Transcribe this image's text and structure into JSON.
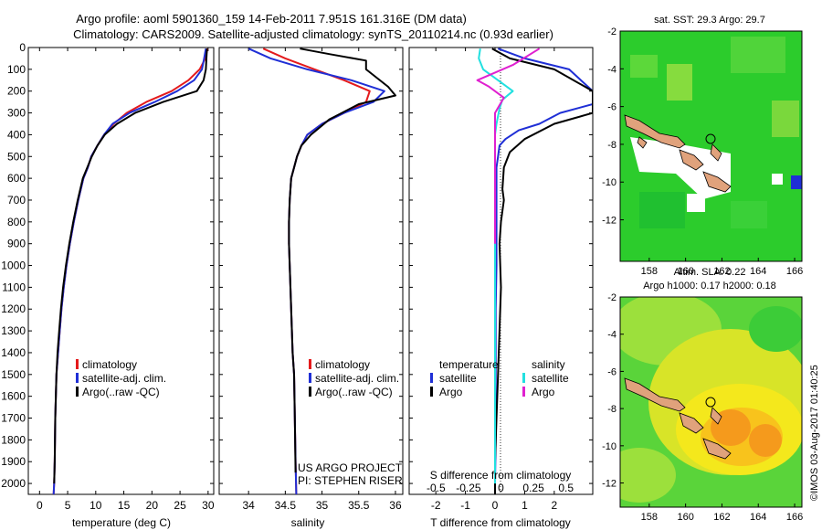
{
  "header": {
    "line1": "Argo profile: aoml 5901360_159 14-Feb-2011 7.951S 161.316E (DM data)",
    "line2": "Climatology: CARS2009. Satellite-adjusted climatology: synTS_20110214.nc (0.93d earlier)"
  },
  "sst_map": {
    "title": "sat. SST: 29.3 Argo: 29.7"
  },
  "sla_map": {
    "title1": "Altim. SLA: 0.22",
    "title2": "Argo h1000: 0.17 h2000: 0.18"
  },
  "credits": {
    "project": "US ARGO PROJECT",
    "pi": "PI: STEPHEN RISER",
    "stamp": "©IMOS 03-Aug-2017 01:40:25"
  },
  "colors": {
    "climatology": "#e41a1c",
    "satellite": "#1f2fd6",
    "argo": "#000000",
    "sal_satellite": "#22e0e0",
    "sal_argo": "#e020d0",
    "map_green": "#2ccc2c",
    "map_yellow": "#f4e81c",
    "map_orange": "#f59a1c",
    "land": "#e0a27c"
  },
  "legend_profiles": [
    "climatology",
    "satellite-adj. clim.",
    "Argo(..raw -QC)"
  ],
  "legend_diff": {
    "temp_head": "temperature",
    "sal_head": "salinity",
    "sat": "satellite",
    "argo": "Argo"
  },
  "chart_data": [
    {
      "type": "line",
      "ylabel": "",
      "xlabel": "temperature (deg C)",
      "xlim": [
        -2,
        31
      ],
      "ylim": [
        2050,
        0
      ],
      "xticks": [
        0,
        5,
        10,
        15,
        20,
        25,
        30
      ],
      "yticks": [
        0,
        100,
        200,
        300,
        400,
        500,
        600,
        700,
        800,
        900,
        1000,
        1100,
        1200,
        1300,
        1400,
        1500,
        1600,
        1700,
        1800,
        1900,
        2000
      ],
      "series": [
        {
          "name": "climatology",
          "color_key": "climatology",
          "x": [
            29.9,
            29.5,
            28.5,
            26.5,
            23.5,
            19,
            15.5,
            13.2,
            11.5,
            10.3,
            9.2,
            8.6,
            7.8,
            6.9,
            6.1,
            5.4,
            4.8,
            4.3,
            3.9,
            3.6,
            3.3,
            3.0,
            2.8,
            2.7,
            2.6,
            2.5
          ],
          "y": [
            5,
            50,
            100,
            150,
            200,
            250,
            300,
            350,
            400,
            450,
            500,
            550,
            600,
            700,
            800,
            900,
            1000,
            1100,
            1200,
            1300,
            1400,
            1500,
            1700,
            1900,
            2000,
            2050
          ]
        },
        {
          "name": "satellite-adj. clim.",
          "color_key": "satellite",
          "x": [
            29.6,
            29.3,
            28.9,
            27.5,
            24.5,
            20.5,
            16,
            13,
            11.5,
            10.3,
            9.2,
            8.6,
            7.8,
            6.9,
            6.1,
            5.4,
            4.8,
            4.3,
            3.9,
            3.6,
            3.3,
            3.0,
            2.8,
            2.7,
            2.6,
            2.5
          ],
          "y": [
            5,
            50,
            100,
            150,
            200,
            250,
            300,
            350,
            400,
            450,
            500,
            550,
            600,
            700,
            800,
            900,
            1000,
            1100,
            1200,
            1300,
            1400,
            1500,
            1700,
            1900,
            2000,
            2050
          ]
        },
        {
          "name": "Argo(..raw -QC)",
          "color_key": "argo",
          "x": [
            29.8,
            29.7,
            29.6,
            29.2,
            28,
            22,
            17,
            13.8,
            11.6,
            10.3,
            9.3,
            8.5,
            7.7,
            6.8,
            6.0,
            5.3,
            4.7,
            4.2,
            3.8,
            3.5,
            3.2,
            3.0,
            2.8,
            2.7,
            2.6
          ],
          "y": [
            5,
            50,
            100,
            150,
            200,
            250,
            300,
            350,
            400,
            450,
            500,
            550,
            600,
            700,
            800,
            900,
            1000,
            1100,
            1200,
            1300,
            1400,
            1500,
            1700,
            1900,
            2000
          ]
        }
      ]
    },
    {
      "type": "line",
      "xlabel": "salinity",
      "xlim": [
        33.6,
        36.1
      ],
      "ylim": [
        2050,
        0
      ],
      "xticks": [
        34,
        34.5,
        35,
        35.5,
        36
      ],
      "series": [
        {
          "name": "climatology",
          "color_key": "climatology",
          "x": [
            34.2,
            34.5,
            34.9,
            35.3,
            35.65,
            35.6,
            35.3,
            35.0,
            34.8,
            34.72,
            34.66,
            34.62,
            34.58,
            34.56,
            34.55,
            34.55,
            34.56,
            34.57,
            34.58,
            34.59,
            34.6,
            34.62,
            34.63,
            34.64,
            34.65
          ],
          "y": [
            5,
            50,
            100,
            150,
            200,
            250,
            300,
            350,
            400,
            450,
            500,
            550,
            600,
            700,
            800,
            900,
            1000,
            1100,
            1200,
            1300,
            1400,
            1500,
            1700,
            1900,
            2050
          ]
        },
        {
          "name": "satellite-adj. clim.",
          "color_key": "satellite",
          "x": [
            34.0,
            34.3,
            34.8,
            35.4,
            35.85,
            35.7,
            35.3,
            35.0,
            34.8,
            34.72,
            34.66,
            34.62,
            34.58,
            34.56,
            34.55,
            34.55,
            34.56,
            34.57,
            34.58,
            34.59,
            34.6,
            34.62,
            34.63,
            34.64,
            34.65
          ],
          "y": [
            5,
            50,
            100,
            150,
            200,
            250,
            300,
            350,
            400,
            450,
            500,
            550,
            600,
            700,
            800,
            900,
            1000,
            1100,
            1200,
            1300,
            1400,
            1500,
            1700,
            1900,
            2050
          ]
        },
        {
          "name": "Argo(..raw -QC)",
          "color_key": "argo",
          "x": [
            34.7,
            35.1,
            35.6,
            35.6,
            35.9,
            36.0,
            35.5,
            35.1,
            34.85,
            34.72,
            34.66,
            34.62,
            34.58,
            34.56,
            34.55,
            34.55,
            34.56,
            34.57,
            34.58,
            34.59,
            34.6,
            34.62,
            34.63,
            34.64
          ],
          "y": [
            5,
            30,
            60,
            100,
            180,
            220,
            260,
            330,
            400,
            450,
            500,
            550,
            600,
            700,
            800,
            900,
            1000,
            1100,
            1200,
            1300,
            1400,
            1500,
            1700,
            1950
          ]
        }
      ]
    },
    {
      "type": "line",
      "xlabel": "T difference from climatology",
      "xlabel_top": "S difference from climatology",
      "xlim": [
        -2.9,
        3.3
      ],
      "ylim": [
        2050,
        0
      ],
      "xticks": [
        -2,
        -1,
        0,
        1,
        2
      ],
      "xticks_top": [
        -0.5,
        -0.25,
        0,
        0.25,
        0.5
      ],
      "series": [
        {
          "name": "temperature satellite",
          "color_key": "satellite",
          "x": [
            0.1,
            1.0,
            2.5,
            3.3,
            3.3,
            2.2,
            1.5,
            0.8,
            0.35,
            0.15,
            0.1,
            0.05,
            0.05,
            0.05,
            0.05,
            0.02,
            0.02,
            0.02,
            0.02,
            0.0,
            0.0
          ],
          "y": [
            5,
            50,
            100,
            200,
            260,
            300,
            350,
            380,
            420,
            450,
            500,
            550,
            650,
            800,
            1000,
            1200,
            1400,
            1600,
            1800,
            2000,
            2050
          ]
        },
        {
          "name": "temperature Argo",
          "color_key": "argo",
          "x": [
            -0.1,
            0.5,
            2.0,
            3.3,
            3.3,
            2.0,
            1.0,
            0.5,
            0.3,
            0.25,
            0.3,
            0.2,
            0.15,
            0.2,
            0.15,
            0.1,
            0.05,
            0.0,
            0.0
          ],
          "y": [
            5,
            50,
            100,
            200,
            300,
            350,
            420,
            480,
            550,
            650,
            700,
            800,
            900,
            1100,
            1300,
            1500,
            1700,
            1900,
            2050
          ]
        },
        {
          "name": "salinity satellite",
          "color_key": "sal_satellite",
          "x": [
            -0.5,
            -0.55,
            -0.4,
            0.1,
            0.6,
            0.25,
            0.15,
            0.05,
            0.0,
            0.0,
            0.0,
            0.0,
            0.0,
            0.0,
            0.0
          ],
          "y": [
            5,
            50,
            100,
            150,
            200,
            240,
            280,
            350,
            400,
            500,
            600,
            800,
            1200,
            1600,
            2000
          ]
        },
        {
          "name": "salinity Argo",
          "color_key": "sal_argo",
          "x": [
            1.5,
            0.6,
            -0.6,
            -0.2,
            0.3,
            0.0,
            0.0,
            0.0
          ],
          "y": [
            5,
            80,
            150,
            180,
            230,
            300,
            500,
            900
          ]
        }
      ]
    }
  ],
  "map_axes": {
    "lon_ticks": [
      158,
      160,
      162,
      164,
      166
    ],
    "lat_ticks": [
      -2,
      -4,
      -6,
      -8,
      -10,
      -12
    ]
  }
}
